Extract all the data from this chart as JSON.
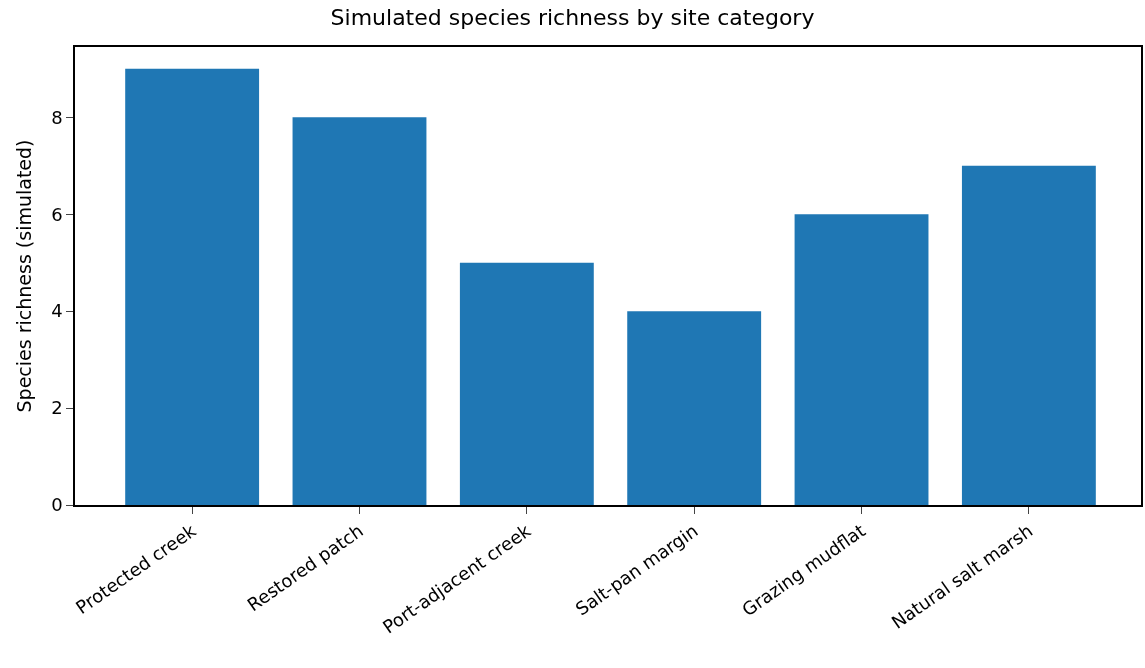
{
  "chart_data": {
    "type": "bar",
    "title": "Simulated species richness by site category",
    "ylabel": "Species richness (simulated)",
    "categories": [
      "Protected creek",
      "Restored patch",
      "Port-adjacent creek",
      "Salt-pan margin",
      "Grazing mudflat",
      "Natural salt marsh"
    ],
    "values": [
      9,
      8,
      5,
      4,
      6,
      7
    ],
    "color": "#1f77b4",
    "ylim": [
      0,
      9.45
    ],
    "yticks": [
      0,
      2,
      4,
      6,
      8
    ]
  }
}
